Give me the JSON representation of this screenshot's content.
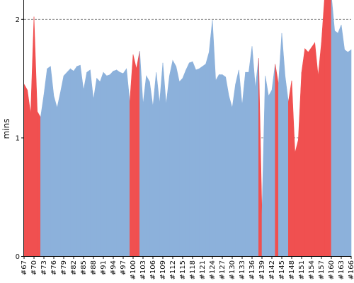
{
  "chart_data": {
    "type": "area",
    "xlabel": "",
    "ylabel": "mins",
    "ylim": [
      0,
      2.2
    ],
    "yticks": [
      0,
      1,
      2
    ],
    "grid": {
      "horizontal": true,
      "style": "dashed"
    },
    "x": [
      67,
      68,
      69,
      70,
      71,
      72,
      73,
      74,
      75,
      76,
      77,
      78,
      79,
      80,
      81,
      82,
      83,
      84,
      85,
      86,
      87,
      88,
      89,
      90,
      91,
      92,
      93,
      94,
      95,
      96,
      97,
      98,
      99,
      100,
      101,
      102,
      103,
      104,
      105,
      106,
      107,
      108,
      109,
      110,
      111,
      112,
      113,
      114,
      115,
      116,
      117,
      118,
      119,
      120,
      121,
      122,
      123,
      124,
      125,
      126,
      127,
      128,
      129,
      130,
      131,
      132,
      133,
      134,
      135,
      136,
      137,
      138,
      139,
      140,
      141,
      142,
      143,
      144,
      145,
      146,
      147,
      148,
      149,
      150,
      151,
      152,
      153,
      154,
      155,
      156,
      157,
      158,
      159,
      160,
      161,
      162,
      163,
      164,
      165,
      166
    ],
    "x_tick_labels": [
      "#67",
      "#70",
      "#73",
      "#76",
      "#79",
      "#82",
      "#85",
      "#88",
      "#91",
      "#94",
      "#97",
      "#100",
      "#103",
      "#106",
      "#109",
      "#112",
      "#115",
      "#118",
      "#121",
      "#124",
      "#127",
      "#130",
      "#133",
      "#136",
      "#139",
      "#142",
      "#145",
      "#148",
      "#151",
      "#154",
      "#157",
      "#160",
      "#163",
      "#166"
    ],
    "values": [
      1.45,
      1.4,
      1.2,
      2.02,
      1.22,
      1.17,
      1.36,
      1.58,
      1.6,
      1.35,
      1.25,
      1.38,
      1.52,
      1.55,
      1.58,
      1.56,
      1.6,
      1.61,
      1.4,
      1.55,
      1.57,
      1.32,
      1.5,
      1.47,
      1.55,
      1.52,
      1.53,
      1.56,
      1.57,
      1.55,
      1.54,
      1.58,
      1.3,
      1.7,
      1.58,
      1.73,
      1.28,
      1.52,
      1.47,
      1.26,
      1.55,
      1.29,
      1.63,
      1.28,
      1.52,
      1.65,
      1.6,
      1.47,
      1.5,
      1.57,
      1.63,
      1.64,
      1.57,
      1.58,
      1.6,
      1.62,
      1.72,
      1.99,
      1.48,
      1.53,
      1.53,
      1.51,
      1.35,
      1.25,
      1.45,
      1.57,
      1.27,
      1.55,
      1.55,
      1.77,
      1.42,
      1.67,
      0.35,
      1.52,
      1.35,
      1.4,
      1.62,
      1.45,
      1.88,
      1.52,
      1.3,
      1.48,
      0.87,
      0.98,
      1.55,
      1.75,
      1.72,
      1.76,
      1.8,
      1.52,
      1.8,
      2.2,
      2.2,
      2.2,
      1.9,
      1.88,
      1.95,
      1.74,
      1.72,
      1.74
    ],
    "highlight_color": "#f05050",
    "base_color": "#8cb1db",
    "highlight": [
      67,
      68,
      69,
      70,
      71,
      72,
      99,
      100,
      101,
      102,
      138,
      139,
      143,
      144,
      147,
      148,
      149,
      150,
      151,
      152,
      153,
      154,
      155,
      156,
      157,
      158,
      159,
      160
    ]
  }
}
